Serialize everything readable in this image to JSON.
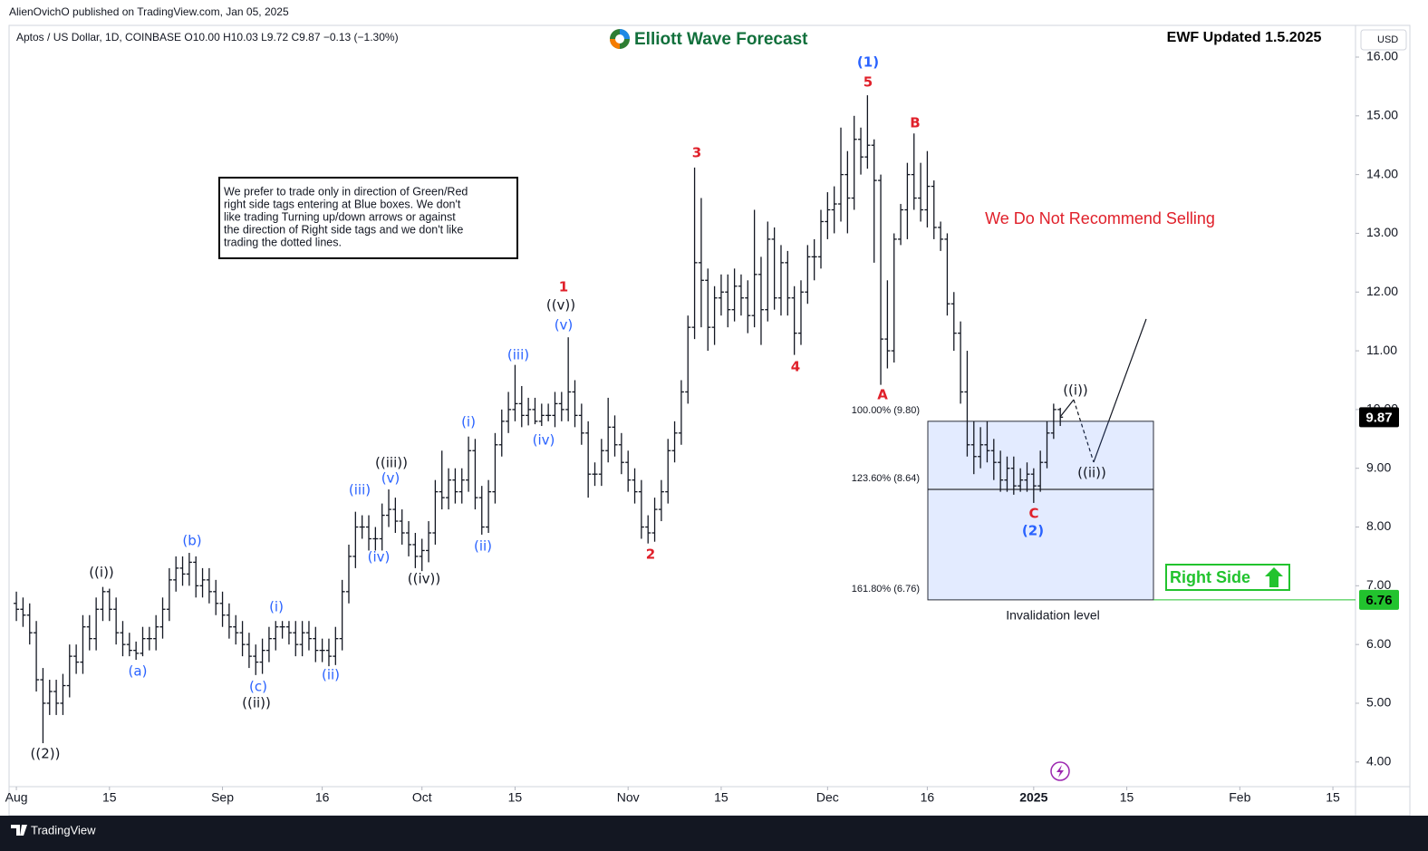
{
  "chart_data": {
    "type": "ohlc",
    "source": "AlienOvichO published on TradingView.com, Jan 05, 2025",
    "title": "Aptos / US Dollar, 1D, COINBASE  O10.00  H10.03  L9.72  C9.87  −0.13 (−1.30%)",
    "brand": "Elliott Wave Forecast",
    "update_note": "EWF Updated 1.5.2025",
    "note": [
      "We prefer to trade only in direction of Green/Red",
      "right side tags entering at Blue boxes. We don't",
      "like trading Turning up/down arrows or against",
      "the direction of Right side tags and we don't like",
      "trading the dotted lines."
    ],
    "warning": "We Do Not Recommend Selling",
    "signal": "Right Side",
    "invalidation": "Invalidation level",
    "currency": "USD",
    "footer": "TradingView",
    "color": "#131722",
    "grid": false,
    "open": [
      6.7,
      6.6,
      6.5,
      6.2,
      5.4,
      5.0,
      5.2,
      5.0,
      5.3,
      5.8,
      5.7,
      6.3,
      6.1,
      6.6,
      6.9,
      6.6,
      6.2,
      6.0,
      5.9,
      5.85,
      6.1,
      6.1,
      6.3,
      6.6,
      7.1,
      7.3,
      7.2,
      7.4,
      7.0,
      7.1,
      6.9,
      6.7,
      6.5,
      6.3,
      6.2,
      6.0,
      5.8,
      5.7,
      5.9,
      6.1,
      6.3,
      6.3,
      6.2,
      6.0,
      6.2,
      6.1,
      5.9,
      5.9,
      5.8,
      6.1,
      6.9,
      7.5,
      8.0,
      8.0,
      7.8,
      7.8,
      8.2,
      8.3,
      8.1,
      7.9,
      7.7,
      7.5,
      7.6,
      7.9,
      8.6,
      8.5,
      8.8,
      8.6,
      8.8,
      9.3,
      8.5,
      8.0,
      8.6,
      9.4,
      9.8,
      10.0,
      10.1,
      9.9,
      10.0,
      9.8,
      9.9,
      9.9,
      10.1,
      10.0,
      10.3,
      9.9,
      9.6,
      8.9,
      8.9,
      9.3,
      9.7,
      9.4,
      9.1,
      8.8,
      8.6,
      8.0,
      7.9,
      8.3,
      8.6,
      9.3,
      9.6,
      10.3,
      11.4,
      12.5,
      12.2,
      11.4,
      11.9,
      12.0,
      11.7,
      12.1,
      11.9,
      11.6,
      12.3,
      11.7,
      12.9,
      11.9,
      12.5,
      11.9,
      11.3,
      12.0,
      12.6,
      12.6,
      13.2,
      13.4,
      13.5,
      14.0,
      13.6,
      14.6,
      14.3,
      14.5,
      13.9,
      11.2,
      11.0,
      12.9,
      13.4,
      14.0,
      13.6,
      13.4,
      13.8,
      13.1,
      12.9,
      11.8,
      11.3,
      10.3,
      9.4,
      9.2,
      9.4,
      9.3,
      9.1,
      8.8,
      9.0,
      8.7,
      8.8,
      8.9,
      8.7,
      9.1,
      9.6,
      10.0
    ],
    "high": [
      6.9,
      6.8,
      6.7,
      6.4,
      5.6,
      5.4,
      5.4,
      5.5,
      6.0,
      6.0,
      6.5,
      6.5,
      6.8,
      6.98,
      6.95,
      6.8,
      6.4,
      6.2,
      6.05,
      6.3,
      6.3,
      6.5,
      6.8,
      7.3,
      7.5,
      7.5,
      7.56,
      7.5,
      7.3,
      7.3,
      7.1,
      6.9,
      6.7,
      6.5,
      6.4,
      6.2,
      6.0,
      6.1,
      6.3,
      6.4,
      6.4,
      6.4,
      6.4,
      6.4,
      6.4,
      6.3,
      6.1,
      6.1,
      6.3,
      7.1,
      7.7,
      8.26,
      8.2,
      8.2,
      8.0,
      8.4,
      8.64,
      8.5,
      8.3,
      8.1,
      7.9,
      7.8,
      8.1,
      8.8,
      9.3,
      9.0,
      9.0,
      9.0,
      9.54,
      9.5,
      8.7,
      8.8,
      9.6,
      10.0,
      10.3,
      10.76,
      10.4,
      10.2,
      10.2,
      10.1,
      10.1,
      10.3,
      10.3,
      11.23,
      10.5,
      10.1,
      9.8,
      9.1,
      9.5,
      10.2,
      9.9,
      9.6,
      9.3,
      9.0,
      8.8,
      8.2,
      8.5,
      8.8,
      9.5,
      9.8,
      10.5,
      11.6,
      14.12,
      13.6,
      12.4,
      12.1,
      12.3,
      12.3,
      12.4,
      12.3,
      12.2,
      13.4,
      12.6,
      13.2,
      13.1,
      12.8,
      12.7,
      12.1,
      12.2,
      12.8,
      12.9,
      13.4,
      13.7,
      13.8,
      14.8,
      14.4,
      15.0,
      14.8,
      15.35,
      14.6,
      14.0,
      12.2,
      13.0,
      13.5,
      14.2,
      14.7,
      14.2,
      14.4,
      13.9,
      13.2,
      13.0,
      12.0,
      11.5,
      11.0,
      9.8,
      9.7,
      9.8,
      9.5,
      9.3,
      9.2,
      9.2,
      9.0,
      9.1,
      9.0,
      9.3,
      9.8,
      10.1,
      10.03
    ],
    "low": [
      6.4,
      6.3,
      6.0,
      5.2,
      4.32,
      4.8,
      4.8,
      4.8,
      5.1,
      5.5,
      5.5,
      5.9,
      5.9,
      6.4,
      6.4,
      6.0,
      5.8,
      5.8,
      5.74,
      5.8,
      5.9,
      5.9,
      6.1,
      6.4,
      6.9,
      7.0,
      7.0,
      6.8,
      6.8,
      6.7,
      6.5,
      6.3,
      6.1,
      6.0,
      5.8,
      5.6,
      5.48,
      5.5,
      5.7,
      5.9,
      6.1,
      6.0,
      5.8,
      5.8,
      5.9,
      5.7,
      5.7,
      5.63,
      5.65,
      5.9,
      6.7,
      7.3,
      7.8,
      7.6,
      7.6,
      7.6,
      8.0,
      7.9,
      7.7,
      7.5,
      7.3,
      7.25,
      7.4,
      7.7,
      8.3,
      8.3,
      8.4,
      8.4,
      8.6,
      8.3,
      7.87,
      7.9,
      8.4,
      9.2,
      9.6,
      9.8,
      9.7,
      9.73,
      9.75,
      9.72,
      9.8,
      9.7,
      9.8,
      9.8,
      9.7,
      9.4,
      8.5,
      8.7,
      8.7,
      9.1,
      9.2,
      8.9,
      8.6,
      8.4,
      7.8,
      7.72,
      7.75,
      8.1,
      8.4,
      9.1,
      9.4,
      10.1,
      11.2,
      11.4,
      11.0,
      11.1,
      11.6,
      11.4,
      11.5,
      11.6,
      11.3,
      11.4,
      11.1,
      11.5,
      11.7,
      11.6,
      11.6,
      10.93,
      11.1,
      11.8,
      12.2,
      12.4,
      12.9,
      13.0,
      13.2,
      13.0,
      13.4,
      14.0,
      14.1,
      12.5,
      10.42,
      10.7,
      10.8,
      12.8,
      12.9,
      13.4,
      13.2,
      13.1,
      12.9,
      12.7,
      11.6,
      11.0,
      10.1,
      9.2,
      8.9,
      9.0,
      9.1,
      8.8,
      8.6,
      8.6,
      8.55,
      8.6,
      8.6,
      8.41,
      8.6,
      9.0,
      9.5,
      9.72
    ],
    "close": [
      6.6,
      6.5,
      6.2,
      5.4,
      5.0,
      5.2,
      5.0,
      5.3,
      5.8,
      5.7,
      6.3,
      6.1,
      6.6,
      6.9,
      6.6,
      6.2,
      6.0,
      5.9,
      5.85,
      6.1,
      6.1,
      6.3,
      6.6,
      7.1,
      7.3,
      7.2,
      7.4,
      7.0,
      7.1,
      6.9,
      6.7,
      6.5,
      6.3,
      6.2,
      6.0,
      5.8,
      5.7,
      5.9,
      6.1,
      6.3,
      6.3,
      6.2,
      6.0,
      6.2,
      6.1,
      5.9,
      5.9,
      5.8,
      6.1,
      6.9,
      7.5,
      8.0,
      8.0,
      7.8,
      7.8,
      8.2,
      8.3,
      8.1,
      7.9,
      7.7,
      7.5,
      7.6,
      7.9,
      8.6,
      8.5,
      8.8,
      8.6,
      8.8,
      9.3,
      8.5,
      8.0,
      8.6,
      9.4,
      9.8,
      10.0,
      10.1,
      9.9,
      10.0,
      9.8,
      9.9,
      9.9,
      10.1,
      10.0,
      10.3,
      9.9,
      9.6,
      8.9,
      8.9,
      9.3,
      9.7,
      9.4,
      9.1,
      8.8,
      8.6,
      8.0,
      7.9,
      8.3,
      8.6,
      9.3,
      9.6,
      10.3,
      11.4,
      12.5,
      12.2,
      11.4,
      11.9,
      12.0,
      11.7,
      12.1,
      11.9,
      11.6,
      12.3,
      11.7,
      12.9,
      11.9,
      12.5,
      11.9,
      11.3,
      12.0,
      12.6,
      12.6,
      13.2,
      13.4,
      13.5,
      14.0,
      13.6,
      14.6,
      14.3,
      14.5,
      13.9,
      11.2,
      11.0,
      12.9,
      13.4,
      14.0,
      13.6,
      13.4,
      13.8,
      13.1,
      12.9,
      11.8,
      11.3,
      10.3,
      9.4,
      9.2,
      9.4,
      9.3,
      9.1,
      8.8,
      9.0,
      8.7,
      8.8,
      8.9,
      8.7,
      9.1,
      9.6,
      10.0,
      9.87
    ],
    "xlim": [
      -1.1,
      201.4
    ],
    "xticks": [
      {
        "value": 0,
        "label": "Aug"
      },
      {
        "value": 14,
        "label": "15"
      },
      {
        "value": 31,
        "label": "Sep"
      },
      {
        "value": 46,
        "label": "16"
      },
      {
        "value": 61,
        "label": "Oct"
      },
      {
        "value": 75,
        "label": "15"
      },
      {
        "value": 92,
        "label": "Nov"
      },
      {
        "value": 106,
        "label": "15"
      },
      {
        "value": 122,
        "label": "Dec"
      },
      {
        "value": 137,
        "label": "16"
      },
      {
        "value": 153,
        "label": "2025"
      },
      {
        "value": 167,
        "label": "15"
      },
      {
        "value": 184,
        "label": "Feb"
      },
      {
        "value": 198,
        "label": "15"
      }
    ],
    "ylim": [
      3.58,
      16.54
    ],
    "yticks": [
      {
        "value": 4,
        "label": "4.00"
      },
      {
        "value": 5,
        "label": "5.00"
      },
      {
        "value": 6,
        "label": "6.00"
      },
      {
        "value": 7,
        "label": "7.00"
      },
      {
        "value": 8,
        "label": "8.00"
      },
      {
        "value": 9,
        "label": "9.00"
      },
      {
        "value": 10,
        "label": "10.00"
      },
      {
        "value": 11,
        "label": "11.00"
      },
      {
        "value": 12,
        "label": "12.00"
      },
      {
        "value": 13,
        "label": "13.00"
      },
      {
        "value": 14,
        "label": "14.00"
      },
      {
        "value": 15,
        "label": "15.00"
      },
      {
        "value": 16,
        "label": "16.00"
      }
    ],
    "last_price": 9.87,
    "invalidation_price": 6.76,
    "fib_levels": [
      {
        "value": 9.8,
        "label": "100.00% (9.80)"
      },
      {
        "value": 8.64,
        "label": "123.60% (8.64)"
      },
      {
        "value": 6.76,
        "label": "161.80% (6.76)"
      }
    ],
    "annotations": [
      {
        "text": "((2))",
        "color": "#131722"
      },
      {
        "text": "((i))",
        "color": "#131722"
      },
      {
        "text": "(a)",
        "color": "#2962ff"
      },
      {
        "text": "(b)",
        "color": "#2962ff"
      },
      {
        "text": "(c)",
        "color": "#2962ff"
      },
      {
        "text": "((ii))",
        "color": "#131722"
      },
      {
        "text": "(i)",
        "color": "#2962ff"
      },
      {
        "text": "(ii)",
        "color": "#2962ff"
      },
      {
        "text": "(iii)",
        "color": "#2962ff"
      },
      {
        "text": "(iv)",
        "color": "#2962ff"
      },
      {
        "text": "(v)",
        "color": "#2962ff"
      },
      {
        "text": "((iii))",
        "color": "#131722"
      },
      {
        "text": "((iv))",
        "color": "#131722"
      },
      {
        "text": "(i)",
        "color": "#2962ff"
      },
      {
        "text": "(ii)",
        "color": "#2962ff"
      },
      {
        "text": "(iii)",
        "color": "#2962ff"
      },
      {
        "text": "(iv)",
        "color": "#2962ff"
      },
      {
        "text": "(v)",
        "color": "#2962ff"
      },
      {
        "text": "((v))",
        "color": "#131722"
      },
      {
        "text": "1",
        "color": "#e0202a"
      },
      {
        "text": "2",
        "color": "#e0202a"
      },
      {
        "text": "3",
        "color": "#e0202a"
      },
      {
        "text": "4",
        "color": "#e0202a"
      },
      {
        "text": "5",
        "color": "#e0202a"
      },
      {
        "text": "(1)",
        "color": "#2962ff"
      },
      {
        "text": "A",
        "color": "#e0202a"
      },
      {
        "text": "B",
        "color": "#e0202a"
      },
      {
        "text": "C",
        "color": "#e0202a"
      },
      {
        "text": "(2)",
        "color": "#2962ff"
      },
      {
        "text": "((i))",
        "color": "#131722"
      },
      {
        "text": "((ii))",
        "color": "#131722"
      }
    ]
  }
}
